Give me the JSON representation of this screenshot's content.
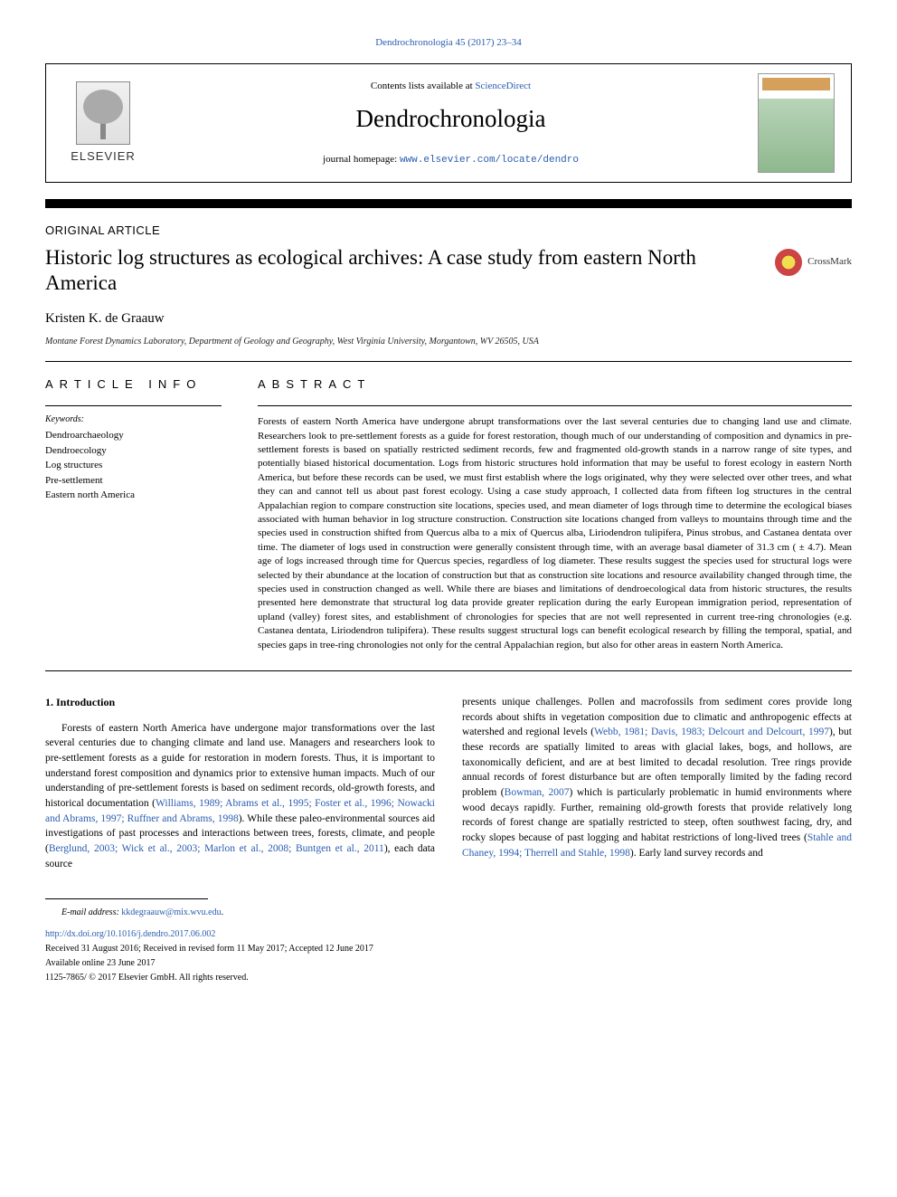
{
  "top_citation": "Dendrochronologia 45 (2017) 23–34",
  "header": {
    "contents_prefix": "Contents lists available at ",
    "contents_link": "ScienceDirect",
    "journal_name": "Dendrochronologia",
    "homepage_prefix": "journal homepage: ",
    "homepage_url": "www.elsevier.com/locate/dendro",
    "elsevier_name": "ELSEVIER",
    "cover_label": "DENDROCHRONOLOGIA"
  },
  "article_type": "ORIGINAL ARTICLE",
  "title": "Historic log structures as ecological archives: A case study from eastern North America",
  "crossmark": "CrossMark",
  "author": "Kristen K. de Graauw",
  "affiliation": "Montane Forest Dynamics Laboratory, Department of Geology and Geography, West Virginia University, Morgantown, WV 26505, USA",
  "info": {
    "heading": "ARTICLE INFO",
    "keywords_label": "Keywords:",
    "keywords": [
      "Dendroarchaeology",
      "Dendroecology",
      "Log structures",
      "Pre-settlement",
      "Eastern north America"
    ]
  },
  "abstract": {
    "heading": "ABSTRACT",
    "text": "Forests of eastern North America have undergone abrupt transformations over the last several centuries due to changing land use and climate. Researchers look to pre-settlement forests as a guide for forest restoration, though much of our understanding of composition and dynamics in pre-settlement forests is based on spatially restricted sediment records, few and fragmented old-growth stands in a narrow range of site types, and potentially biased historical documentation. Logs from historic structures hold information that may be useful to forest ecology in eastern North America, but before these records can be used, we must first establish where the logs originated, why they were selected over other trees, and what they can and cannot tell us about past forest ecology. Using a case study approach, I collected data from fifteen log structures in the central Appalachian region to compare construction site locations, species used, and mean diameter of logs through time to determine the ecological biases associated with human behavior in log structure construction. Construction site locations changed from valleys to mountains through time and the species used in construction shifted from Quercus alba to a mix of Quercus alba, Liriodendron tulipifera, Pinus strobus, and Castanea dentata over time. The diameter of logs used in construction were generally consistent through time, with an average basal diameter of 31.3 cm ( ± 4.7). Mean age of logs increased through time for Quercus species, regardless of log diameter. These results suggest the species used for structural logs were selected by their abundance at the location of construction but that as construction site locations and resource availability changed through time, the species used in construction changed as well. While there are biases and limitations of dendroecological data from historic structures, the results presented here demonstrate that structural log data provide greater replication during the early European immigration period, representation of upland (valley) forest sites, and establishment of chronologies for species that are not well represented in current tree-ring chronologies (e.g. Castanea dentata, Liriodendron tulipifera). These results suggest structural logs can benefit ecological research by filling the temporal, spatial, and species gaps in tree-ring chronologies not only for the central Appalachian region, but also for other areas in eastern North America."
  },
  "body": {
    "section_heading": "1. Introduction",
    "col1_part1": "Forests of eastern North America have undergone major transformations over the last several centuries due to changing climate and land use. Managers and researchers look to pre-settlement forests as a guide for restoration in modern forests. Thus, it is important to understand forest composition and dynamics prior to extensive human impacts. Much of our understanding of pre-settlement forests is based on sediment records, old-growth forests, and historical documentation (",
    "col1_cite1": "Williams, 1989; Abrams et al., 1995; Foster et al., 1996; Nowacki and Abrams, 1997; Ruffner and Abrams, 1998",
    "col1_part2": "). While these paleo-environmental sources aid investigations of past processes and interactions between trees, forests, climate, and people (",
    "col1_cite2": "Berglund, 2003; Wick et al., 2003; Marlon et al., 2008; Buntgen et al., 2011",
    "col1_part3": "), each data source",
    "col2_part1": "presents unique challenges. Pollen and macrofossils from sediment cores provide long records about shifts in vegetation composition due to climatic and anthropogenic effects at watershed and regional levels (",
    "col2_cite1": "Webb, 1981; Davis, 1983; Delcourt and Delcourt, 1997",
    "col2_part2": "), but these records are spatially limited to areas with glacial lakes, bogs, and hollows, are taxonomically deficient, and are at best limited to decadal resolution. Tree rings provide annual records of forest disturbance but are often temporally limited by the fading record problem (",
    "col2_cite2": "Bowman, 2007",
    "col2_part3": ") which is particularly problematic in humid environments where wood decays rapidly. Further, remaining old-growth forests that provide relatively long records of forest change are spatially restricted to steep, often southwest facing, dry, and rocky slopes because of past logging and habitat restrictions of long-lived trees (",
    "col2_cite3": "Stahle and Chaney, 1994; Therrell and Stahle, 1998",
    "col2_part4": "). Early land survey records and"
  },
  "footer": {
    "email_label": "E-mail address: ",
    "email": "kkdegraauw@mix.wvu.edu",
    "email_suffix": ".",
    "doi": "http://dx.doi.org/10.1016/j.dendro.2017.06.002",
    "received": "Received 31 August 2016; Received in revised form 11 May 2017; Accepted 12 June 2017",
    "online": "Available online 23 June 2017",
    "copyright": "1125-7865/ © 2017 Elsevier GmbH. All rights reserved."
  }
}
